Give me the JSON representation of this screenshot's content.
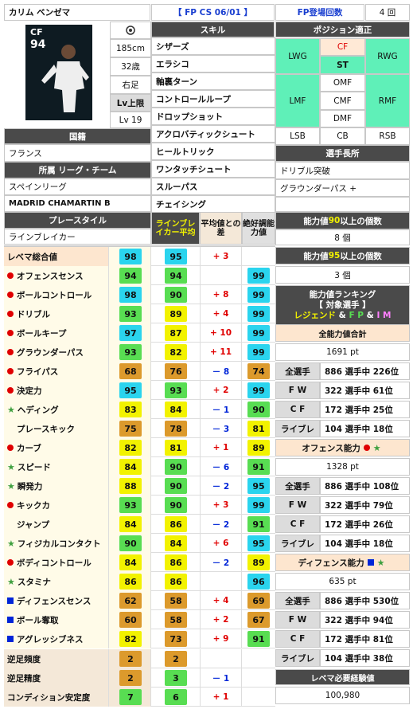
{
  "player": {
    "name": "カリム ベンゼマ",
    "version": "【 FP CS 06/01 】",
    "fp_count_label": "FP登場回数",
    "fp_count": "4 回",
    "position": "CF",
    "ovr": "94",
    "height": "185cm",
    "age": "32歳",
    "foot": "右足",
    "lv_limit": "Lv上限",
    "lv": "Lv 19"
  },
  "headers": {
    "skills": "スキル",
    "positions": "ポジション適正",
    "nationality": "国籍",
    "league_team": "所属 リーグ・チーム",
    "player_skills": "選手長所",
    "playstyle": "プレースタイル",
    "playstyle_avg": "ラインブレイカー平均",
    "avg_diff": "平均値との差",
    "absolute": "絶好調能力値",
    "count90": [
      "能力値 ",
      "90",
      " 以上の個数"
    ],
    "count95": [
      "能力値 ",
      "95",
      " 以上の個数"
    ],
    "ranking_title": "能力値ランキング",
    "ranking_sub": "【 対象選手 】",
    "ranking_types": [
      "レジェンド",
      "&",
      "F P",
      "&",
      "I M"
    ],
    "total_label": "全能力値合計",
    "offense": "オフェンス能力",
    "defense": "ディフェンス能力",
    "exp": "レベマ必要経験値"
  },
  "skills": [
    "シザーズ",
    "エラシコ",
    "軸裏ターン",
    "コントロールループ",
    "ドロップショット",
    "アクロバティックシュート",
    "ヒールトリック",
    "ワンタッチシュート",
    "スルーパス",
    "チェイシング"
  ],
  "positions": {
    "LWG": "LWG",
    "CF": "CF",
    "ST": "ST",
    "RWG": "RWG",
    "OMF": "OMF",
    "LMF": "LMF",
    "CMF": "CMF",
    "RMF": "RMF",
    "DMF": "DMF",
    "LSB": "LSB",
    "CB": "CB",
    "RSB": "RSB"
  },
  "nationality": "フランス",
  "league": "スペインリーグ",
  "team": "MADRID CHAMARTIN B",
  "strengths": [
    "ドリブル突破",
    "グラウンダーパス +"
  ],
  "playstyle": "ラインブレイカー",
  "count90": "8 個",
  "count95": "3 個",
  "stats": [
    {
      "label": "レベマ総合値",
      "mark": "",
      "v": "98",
      "avg": "95",
      "diff": "+ 3",
      "abs": ""
    },
    {
      "label": "オフェンスセンス",
      "mark": "dot",
      "v": "94",
      "avg": "94",
      "diff": "",
      "abs": "99"
    },
    {
      "label": "ボールコントロール",
      "mark": "dot",
      "v": "98",
      "avg": "90",
      "diff": "+ 8",
      "abs": "99"
    },
    {
      "label": "ドリブル",
      "mark": "dot",
      "v": "93",
      "avg": "89",
      "diff": "+ 4",
      "abs": "99"
    },
    {
      "label": "ボールキープ",
      "mark": "dot",
      "v": "97",
      "avg": "87",
      "diff": "+ 10",
      "abs": "99"
    },
    {
      "label": "グラウンダーパス",
      "mark": "dot",
      "v": "93",
      "avg": "82",
      "diff": "+ 11",
      "abs": "99"
    },
    {
      "label": "フライパス",
      "mark": "dot",
      "v": "68",
      "avg": "76",
      "diff": "－ 8",
      "abs": "74"
    },
    {
      "label": "決定力",
      "mark": "dot",
      "v": "95",
      "avg": "93",
      "diff": "+ 2",
      "abs": "99"
    },
    {
      "label": "ヘディング",
      "mark": "star",
      "v": "83",
      "avg": "84",
      "diff": "－ 1",
      "abs": "90"
    },
    {
      "label": "プレースキック",
      "mark": "",
      "v": "75",
      "avg": "78",
      "diff": "－ 3",
      "abs": "81"
    },
    {
      "label": "カーブ",
      "mark": "dot",
      "v": "82",
      "avg": "81",
      "diff": "+ 1",
      "abs": "89"
    },
    {
      "label": "スピード",
      "mark": "star",
      "v": "84",
      "avg": "90",
      "diff": "－ 6",
      "abs": "91"
    },
    {
      "label": "瞬発力",
      "mark": "star",
      "v": "88",
      "avg": "90",
      "diff": "－ 2",
      "abs": "95"
    },
    {
      "label": "キックカ",
      "mark": "dot",
      "v": "93",
      "avg": "90",
      "diff": "+ 3",
      "abs": "99"
    },
    {
      "label": "ジャンプ",
      "mark": "",
      "v": "84",
      "avg": "86",
      "diff": "－ 2",
      "abs": "91"
    },
    {
      "label": "フィジカルコンタクト",
      "mark": "star",
      "v": "90",
      "avg": "84",
      "diff": "+ 6",
      "abs": "95"
    },
    {
      "label": "ボディコントロール",
      "mark": "dot",
      "v": "84",
      "avg": "86",
      "diff": "－ 2",
      "abs": "89"
    },
    {
      "label": "スタミナ",
      "mark": "star",
      "v": "86",
      "avg": "86",
      "diff": "",
      "abs": "96"
    },
    {
      "label": "ディフェンスセンス",
      "mark": "sq",
      "v": "62",
      "avg": "58",
      "diff": "+ 4",
      "abs": "69"
    },
    {
      "label": "ボール奪取",
      "mark": "sq",
      "v": "60",
      "avg": "58",
      "diff": "+ 2",
      "abs": "67"
    },
    {
      "label": "アグレッシブネス",
      "mark": "sq",
      "v": "82",
      "avg": "73",
      "diff": "+ 9",
      "abs": "91"
    },
    {
      "label": "逆足頻度",
      "mark": "",
      "v": "2",
      "avg": "2",
      "diff": "",
      "abs": ""
    },
    {
      "label": "逆足精度",
      "mark": "",
      "v": "2",
      "avg": "3",
      "diff": "－ 1",
      "abs": ""
    },
    {
      "label": "コンディション安定度",
      "mark": "",
      "v": "7",
      "avg": "6",
      "diff": "+ 1",
      "abs": ""
    }
  ],
  "ranking": {
    "total": "1691 pt",
    "total_rows": [
      [
        "全選手",
        "886 選手中 226位"
      ],
      [
        "F W",
        "322 選手中 61位"
      ],
      [
        "C F",
        "172 選手中 25位"
      ],
      [
        "ライブレ",
        "104 選手中 18位"
      ]
    ],
    "offense": "1328 pt",
    "offense_rows": [
      [
        "全選手",
        "886 選手中 108位"
      ],
      [
        "F W",
        "322 選手中 79位"
      ],
      [
        "C F",
        "172 選手中 26位"
      ],
      [
        "ライブレ",
        "104 選手中 18位"
      ]
    ],
    "defense": "635 pt",
    "defense_rows": [
      [
        "全選手",
        "886 選手中 530位"
      ],
      [
        "F W",
        "322 選手中 94位"
      ],
      [
        "C F",
        "172 選手中 81位"
      ],
      [
        "ライブレ",
        "104 選手中 38位"
      ]
    ],
    "exp": "100,980"
  },
  "colors": {
    "blue_cell": "#2ad4ee",
    "green_cell": "#58dd52",
    "yellow_cell": "#f2f200",
    "orange_cell": "#dc9a2c",
    "teal": "#5ff0b8",
    "dark": "#4a4a4a"
  }
}
